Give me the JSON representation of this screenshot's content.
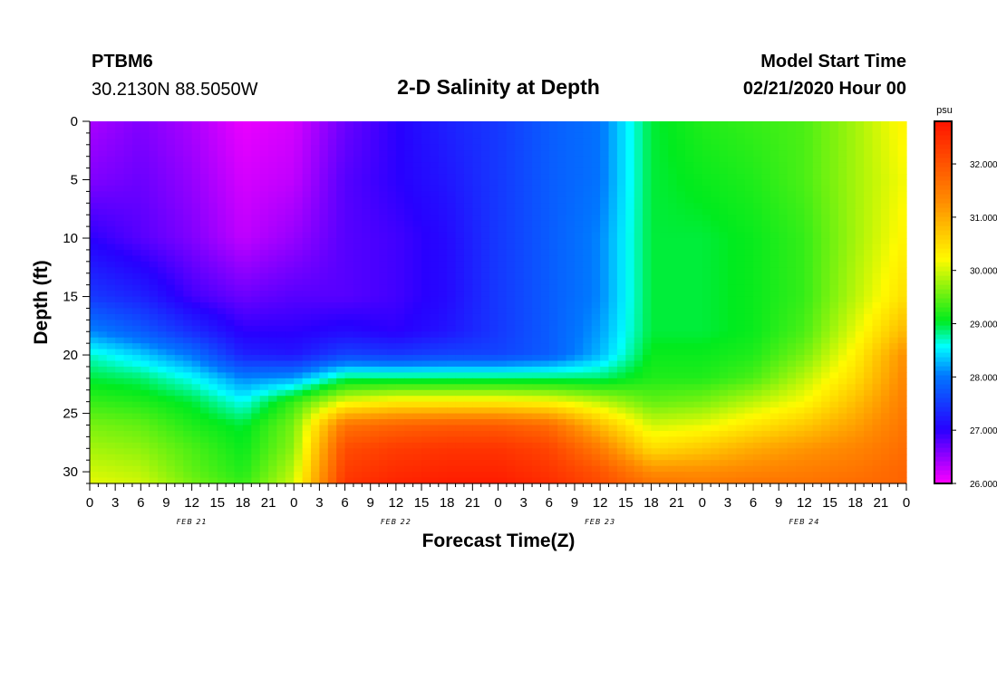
{
  "header": {
    "station": "PTBM6",
    "coords": "30.2130N 88.5050W",
    "title": "2-D Salinity at Depth",
    "start_label": "Model Start Time",
    "start_value": "02/21/2020 Hour 00"
  },
  "chart_data": {
    "type": "heatmap",
    "title": "2-D Salinity at Depth",
    "xlabel": "Forecast Time(Z)",
    "ylabel": "Depth (ft)",
    "x_unit": "forecast hour from 02/21/2020 00Z",
    "xlim": [
      0,
      96
    ],
    "ylim": [
      0,
      31
    ],
    "y_inverted": true,
    "x_tick_labels": [
      "0",
      "3",
      "6",
      "9",
      "12",
      "15",
      "18",
      "21",
      "0",
      "3",
      "6",
      "9",
      "12",
      "15",
      "18",
      "21",
      "0",
      "3",
      "6",
      "9",
      "12",
      "15",
      "18",
      "21",
      "0",
      "3",
      "6",
      "9",
      "12",
      "15",
      "18",
      "21",
      "0"
    ],
    "y_ticks": [
      0,
      5,
      10,
      15,
      20,
      25,
      30
    ],
    "y_tick_labels": [
      "0",
      "5",
      "10",
      "15",
      "20",
      "25",
      "30"
    ],
    "date_labels": [
      "FEB 21",
      "FEB 22",
      "FEB 23",
      "FEB 24"
    ],
    "colorbar": {
      "unit": "psu",
      "min": 26.0,
      "max": 32.8,
      "ticks": [
        26.0,
        27.0,
        28.0,
        29.0,
        30.0,
        31.0,
        32.0
      ],
      "tick_labels": [
        "26.000",
        "27.000",
        "28.000",
        "29.000",
        "30.000",
        "31.000",
        "32.000"
      ]
    },
    "hours": [
      0,
      6,
      12,
      18,
      24,
      30,
      36,
      42,
      48,
      54,
      60,
      66,
      72,
      78,
      84,
      90,
      96
    ],
    "depths": [
      0,
      5,
      10,
      15,
      18,
      20,
      22,
      24,
      26,
      28,
      30,
      31
    ],
    "salinity": [
      [
        26.4,
        26.6,
        26.4,
        26.1,
        26.2,
        26.7,
        27.0,
        27.3,
        27.5,
        27.8,
        28.0,
        29.0,
        29.2,
        29.3,
        29.4,
        29.8,
        30.3
      ],
      [
        26.6,
        26.7,
        26.5,
        26.2,
        26.3,
        26.8,
        27.0,
        27.2,
        27.5,
        27.8,
        28.0,
        29.0,
        29.1,
        29.2,
        29.4,
        29.8,
        30.2
      ],
      [
        27.0,
        26.8,
        26.6,
        26.3,
        26.5,
        26.8,
        26.9,
        27.1,
        27.5,
        27.8,
        28.1,
        29.0,
        29.0,
        29.1,
        29.3,
        29.8,
        30.3
      ],
      [
        27.5,
        27.3,
        26.9,
        26.7,
        26.8,
        26.8,
        26.9,
        27.1,
        27.5,
        27.8,
        28.1,
        29.0,
        29.0,
        29.1,
        29.3,
        29.9,
        30.5
      ],
      [
        28.1,
        27.8,
        27.4,
        27.0,
        27.0,
        27.1,
        27.0,
        27.2,
        27.5,
        27.8,
        28.2,
        29.0,
        29.0,
        29.1,
        29.4,
        30.1,
        30.9
      ],
      [
        28.7,
        28.4,
        28.0,
        27.3,
        27.2,
        27.6,
        27.5,
        27.6,
        27.6,
        27.8,
        28.3,
        29.1,
        29.1,
        29.2,
        29.6,
        30.3,
        31.3
      ],
      [
        29.0,
        28.9,
        28.6,
        28.1,
        28.2,
        28.9,
        28.9,
        28.9,
        28.9,
        28.9,
        28.9,
        29.2,
        29.2,
        29.4,
        29.9,
        30.5,
        31.4
      ],
      [
        29.3,
        29.2,
        29.0,
        28.6,
        29.3,
        30.1,
        30.3,
        30.3,
        30.3,
        30.2,
        29.9,
        29.5,
        29.6,
        29.9,
        30.2,
        30.8,
        31.5
      ],
      [
        29.6,
        29.5,
        29.2,
        29.0,
        29.6,
        31.6,
        31.8,
        31.9,
        31.9,
        31.7,
        30.8,
        30.0,
        30.1,
        30.4,
        30.7,
        31.1,
        31.6
      ],
      [
        29.8,
        29.7,
        29.4,
        29.1,
        29.7,
        32.1,
        32.3,
        32.4,
        32.4,
        32.2,
        31.5,
        30.5,
        30.7,
        31.0,
        31.2,
        31.4,
        31.7
      ],
      [
        30.0,
        29.9,
        29.5,
        29.2,
        29.9,
        32.3,
        32.5,
        32.6,
        32.6,
        32.4,
        32.0,
        31.3,
        31.3,
        31.4,
        31.5,
        31.6,
        31.8
      ],
      [
        30.1,
        30.0,
        29.6,
        29.3,
        30.0,
        32.4,
        32.6,
        32.7,
        32.7,
        32.5,
        32.1,
        31.6,
        31.5,
        31.6,
        31.6,
        31.7,
        31.8
      ]
    ]
  }
}
